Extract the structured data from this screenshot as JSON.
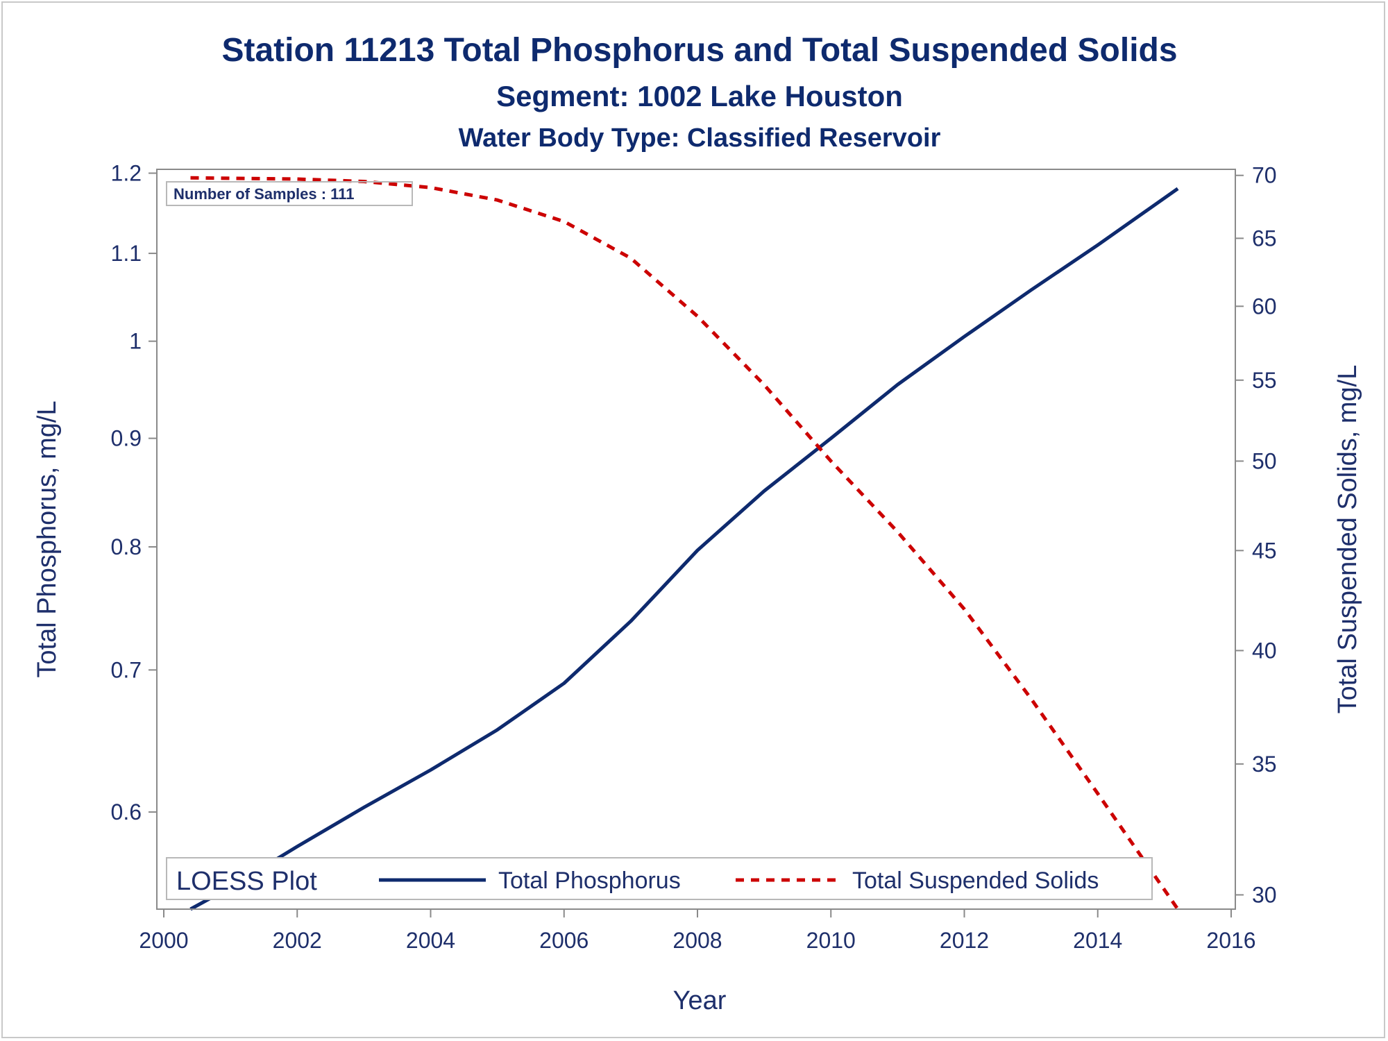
{
  "chart_data": {
    "type": "line",
    "title": "Station 11213  Total Phosphorus and Total Suspended Solids",
    "subtitle": "Segment: 1002  Lake Houston",
    "subtitle2": "Water Body Type: Classified Reservoir",
    "xlabel": "Year",
    "ylabel_left": "Total Phosphorus, mg/L",
    "ylabel_right": "Total Suspended Solids, mg/L",
    "xlim": [
      2000,
      2016
    ],
    "ylim_left": [
      0.54,
      1.205
    ],
    "ylim_right": [
      29.5,
      70.5
    ],
    "y_scale": "log",
    "x_ticks": [
      "2000",
      "2002",
      "2004",
      "2006",
      "2008",
      "2010",
      "2012",
      "2014",
      "2016"
    ],
    "y_ticks_left": [
      "0.6",
      "0.7",
      "0.8",
      "0.9",
      "1",
      "1.1",
      "1.2"
    ],
    "y_ticks_right": [
      "30",
      "35",
      "40",
      "45",
      "50",
      "55",
      "60",
      "65",
      "70"
    ],
    "annotation": "Number of Samples : 111",
    "legend": {
      "title": "LOESS Plot",
      "placement": "bottom-inside",
      "items": [
        {
          "label": "Total Phosphorus",
          "style": "solid",
          "color": "#0e2a6e"
        },
        {
          "label": "Total Suspended Solids",
          "style": "dashed",
          "color": "#cc0000"
        }
      ]
    },
    "series": [
      {
        "name": "Total Phosphorus",
        "axis": "left",
        "color": "#0e2a6e",
        "style": "solid",
        "x": [
          2000.4,
          2001,
          2002,
          2003,
          2004,
          2005,
          2006,
          2007,
          2008,
          2009,
          2010,
          2011,
          2012,
          2013,
          2014,
          2015.2
        ],
        "y": [
          0.54,
          0.553,
          0.578,
          0.603,
          0.628,
          0.656,
          0.69,
          0.738,
          0.797,
          0.85,
          0.9,
          0.954,
          1.005,
          1.057,
          1.11,
          1.18
        ]
      },
      {
        "name": "Total Suspended Solids",
        "axis": "right",
        "color": "#cc0000",
        "style": "dashed",
        "x": [
          2000.4,
          2002,
          2003,
          2004,
          2005,
          2006,
          2007,
          2008,
          2009,
          2010,
          2011,
          2012,
          2013,
          2014,
          2015.2
        ],
        "y": [
          69.8,
          69.7,
          69.5,
          69.0,
          68.0,
          66.3,
          63.5,
          59.3,
          54.7,
          50.0,
          46.0,
          42.0,
          37.8,
          33.8,
          29.5
        ]
      }
    ]
  }
}
